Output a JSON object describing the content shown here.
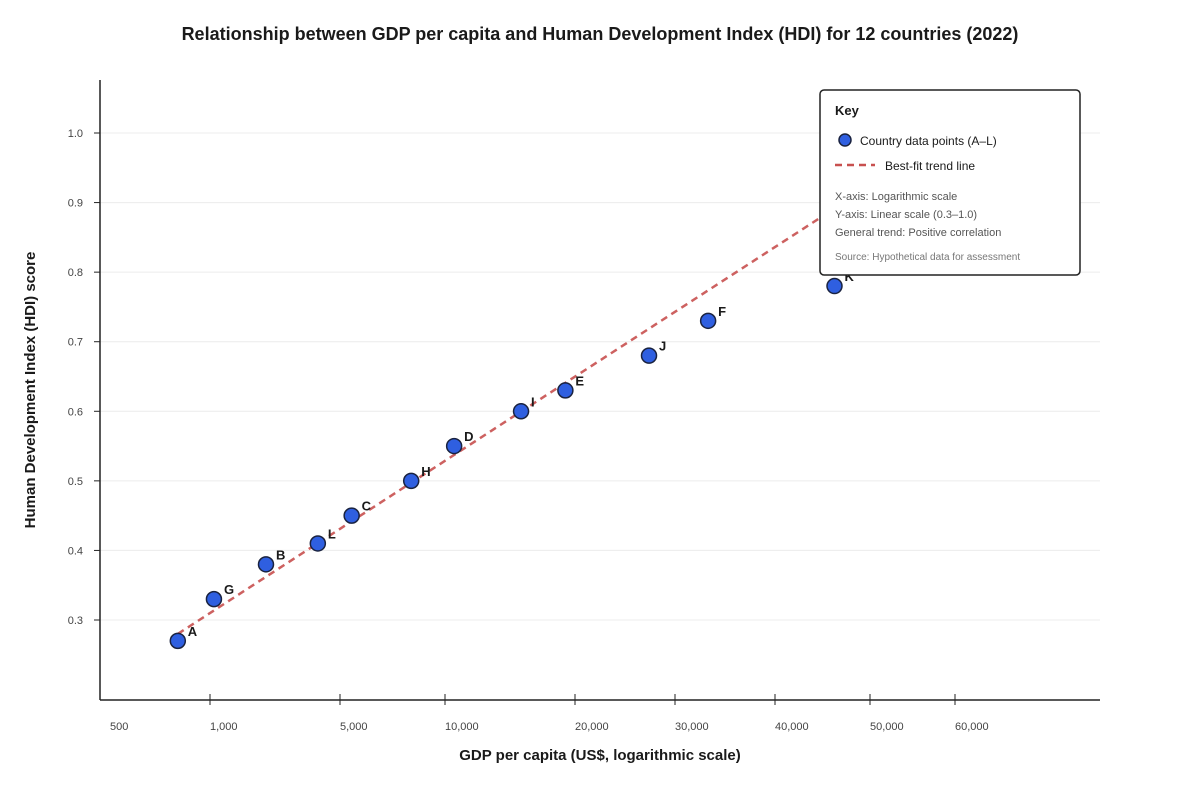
{
  "chart_data": {
    "type": "scatter",
    "title": "Relationship between GDP per capita and Human Development Index (HDI) for 12 countries (2022)",
    "xlabel": "GDP per capita (US$, logarithmic scale)",
    "ylabel": "Human Development Index (HDI) score",
    "x_scale": "log",
    "x_ticks": [
      {
        "value": 500,
        "label": "500"
      },
      {
        "value": 1000,
        "label": "1,000"
      },
      {
        "value": 5000,
        "label": "5,000"
      },
      {
        "value": 10000,
        "label": "10,000"
      },
      {
        "value": 20000,
        "label": "20,000"
      },
      {
        "value": 30000,
        "label": "30,000"
      },
      {
        "value": 40000,
        "label": "40,000"
      },
      {
        "value": 50000,
        "label": "50,000"
      },
      {
        "value": 60000,
        "label": "60,000"
      }
    ],
    "y_scale": "linear",
    "ylim": [
      0.18,
      1.08
    ],
    "y_ticks": [
      {
        "value": 0.3,
        "label": "0.3"
      },
      {
        "value": 0.4,
        "label": "0.4"
      },
      {
        "value": 0.5,
        "label": "0.5"
      },
      {
        "value": 0.6,
        "label": "0.6"
      },
      {
        "value": 0.7,
        "label": "0.7"
      },
      {
        "value": 0.8,
        "label": "0.8"
      },
      {
        "value": 0.9,
        "label": "0.9"
      },
      {
        "value": 1.0,
        "label": "1.0"
      }
    ],
    "grid": true,
    "points": [
      {
        "label": "A",
        "x": 800,
        "y": 0.27
      },
      {
        "label": "G",
        "x": 1050,
        "y": 0.33
      },
      {
        "label": "B",
        "x": 2000,
        "y": 0.38
      },
      {
        "label": "L",
        "x": 3800,
        "y": 0.41
      },
      {
        "label": "C",
        "x": 5400,
        "y": 0.45
      },
      {
        "label": "H",
        "x": 8000,
        "y": 0.5
      },
      {
        "label": "D",
        "x": 10500,
        "y": 0.55
      },
      {
        "label": "I",
        "x": 15000,
        "y": 0.6
      },
      {
        "label": "E",
        "x": 19000,
        "y": 0.63
      },
      {
        "label": "J",
        "x": 27000,
        "y": 0.68
      },
      {
        "label": "F",
        "x": 33000,
        "y": 0.73
      },
      {
        "label": "K",
        "x": 46000,
        "y": 0.78
      }
    ],
    "trend_line": {
      "x_start": 800,
      "y_start": 0.28,
      "x_end": 47000,
      "y_end": 0.9
    },
    "legend": {
      "position": "top-right",
      "title": "Key",
      "points_label": "Country data points (A–L)",
      "trend_label": "Best-fit trend line",
      "notes": [
        "X-axis: Logarithmic scale",
        "Y-axis: Linear scale (0.3–1.0)",
        "General trend: Positive correlation"
      ],
      "source": "Source: Hypothetical data for assessment"
    },
    "colors": {
      "point_fill": "#2f5fe0",
      "point_stroke": "#1a2340",
      "trend": "#c8504f",
      "axis": "#222222",
      "grid": "#ececec"
    }
  }
}
